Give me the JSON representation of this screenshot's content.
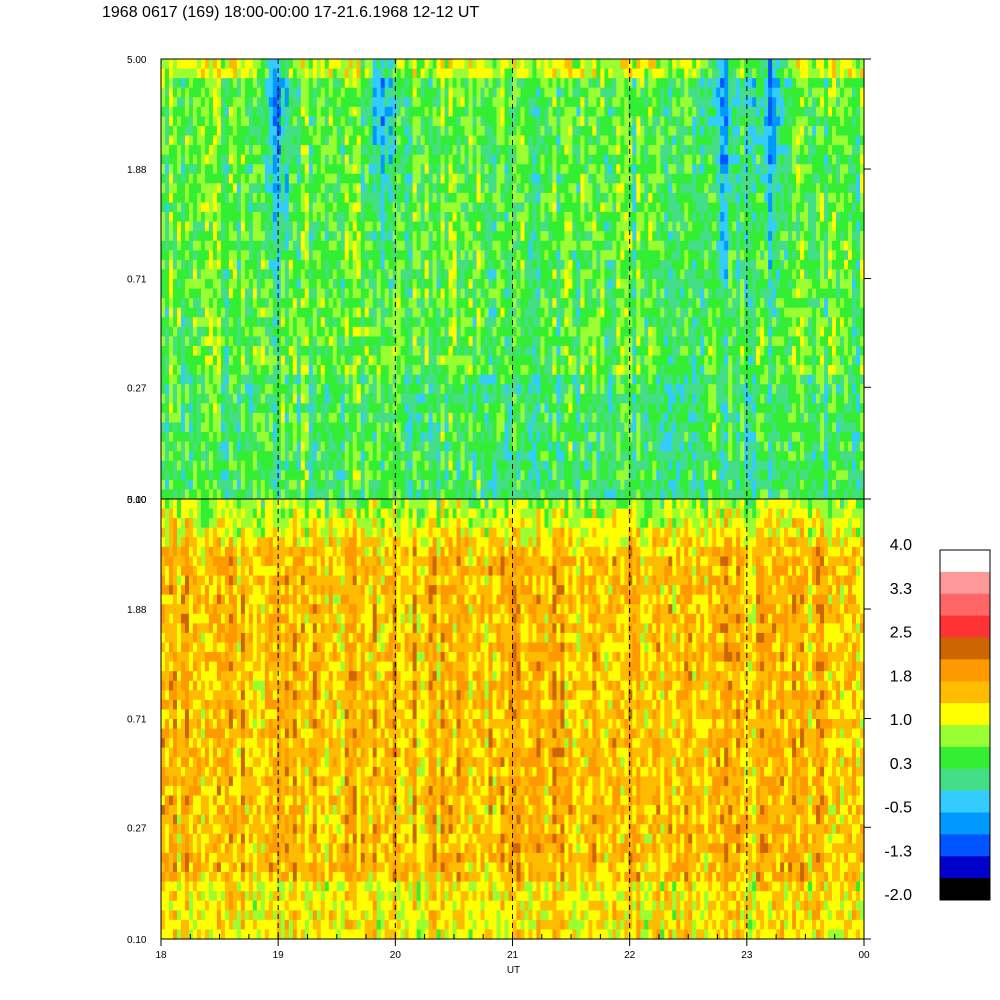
{
  "title": "1968 0617 (169) 18:00-00:00 17-21.6.1968  12-12 UT",
  "chart_data": {
    "type": "heatmap",
    "panels": [
      {
        "name": "",
        "ytick_labels": [
          "5.00",
          "1.88",
          "0.71",
          "0.27",
          "0.10"
        ],
        "y_range": [
          0.1,
          5.0
        ],
        "y_scale": "log",
        "base_level": 0.5,
        "dip_hours": [
          19.0,
          19.9,
          22.8,
          23.2
        ]
      },
      {
        "name": "",
        "ytick_labels": [
          "5.00",
          "1.88",
          "0.71",
          "0.27",
          "0.10"
        ],
        "y_range": [
          0.1,
          5.0
        ],
        "y_scale": "log",
        "base_level": 1.6,
        "dip_hours": []
      }
    ],
    "x_range": [
      18,
      24
    ],
    "xtick_labels": [
      "18",
      "19",
      "20",
      "21",
      "22",
      "23",
      "00"
    ],
    "xtick_hours": [
      18,
      19,
      20,
      21,
      22,
      23,
      24
    ],
    "xlabel": "UT",
    "dashed_gridlines_at_hours": [
      19,
      20,
      21,
      22,
      23
    ],
    "colorbar": {
      "range": [
        -2.0,
        4.0
      ],
      "labels": [
        "4.0",
        "3.3",
        "2.5",
        "1.8",
        "1.0",
        "0.3",
        "-0.5",
        "-1.3",
        "-2.0"
      ],
      "colors_top_to_bottom": [
        "#ffffff",
        "#ff9999",
        "#ff6666",
        "#ff3333",
        "#cc6600",
        "#ff9900",
        "#ffbb00",
        "#ffff00",
        "#99ff33",
        "#33ee33",
        "#44dd88",
        "#33ccff",
        "#0099ff",
        "#0055ff",
        "#0000cc",
        "#000000"
      ]
    }
  }
}
